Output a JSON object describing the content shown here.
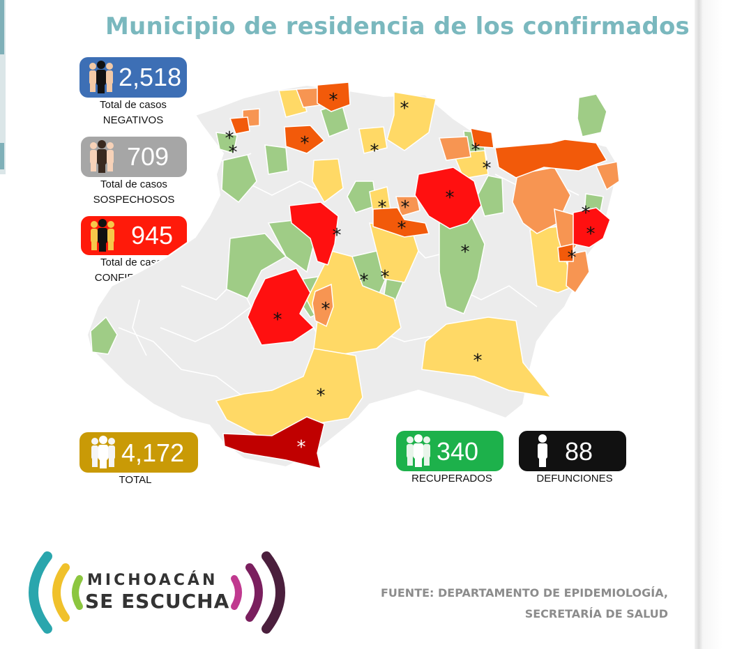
{
  "title": "Municipio de residencia de los confirmados",
  "stats": {
    "negativos": {
      "value": "2,518",
      "label_line1": "Total de casos",
      "label_line2": "NEGATIVOS",
      "color": "#3d6fb5"
    },
    "sospechosos": {
      "value": "709",
      "label_line1": "Total de casos",
      "label_line2": "SOSPECHOSOS",
      "color": "#a6a6a6"
    },
    "confirmados": {
      "value": "945",
      "label_line1": "Total de casos",
      "label_line2": "CONFIRMADOS",
      "color": "#ff1a0a"
    },
    "total": {
      "value": "4,172",
      "label": "TOTAL",
      "color": "#c99a06"
    },
    "recuperados": {
      "value": "340",
      "label": "RECUPERADOS",
      "color": "#1db14b"
    },
    "defunciones": {
      "value": "88",
      "label": "DEFUNCIONES",
      "color": "#111111"
    }
  },
  "map": {
    "marker_symbol": "*",
    "category_colors": {
      "no_cases": "#ececec",
      "green": "#9fcc86",
      "yellow": "#ffd966",
      "light_orange": "#f79552",
      "dark_orange": "#f25a0a",
      "red": "#ff1010",
      "dark_red": "#c00000"
    }
  },
  "source": {
    "line1": "FUENTE: DEPARTAMENTO DE EPIDEMIOLOGÍA,",
    "line2": "SECRETARÍA DE SALUD"
  },
  "logo": {
    "line1": "MICHOACÁN",
    "line2": "SE ESCUCHA",
    "colors": [
      "#2aa6ad",
      "#f0c12b",
      "#8cc63f",
      "#c0398f",
      "#7a1f5e",
      "#4b1f3d"
    ]
  }
}
